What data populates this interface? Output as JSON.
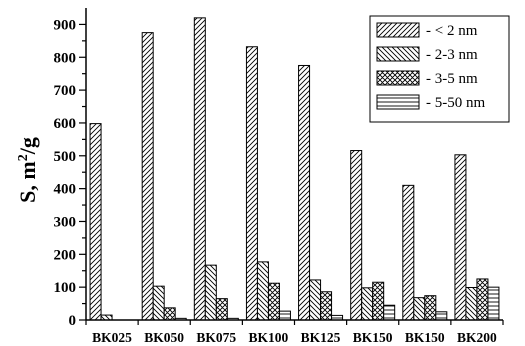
{
  "chart_data": {
    "type": "bar",
    "categories": [
      "BK025",
      "BK050",
      "BK075",
      "BK100",
      "BK125",
      "BK150",
      "BK150",
      "BK200"
    ],
    "series": [
      {
        "name": "- < 2 nm",
        "pattern": "diag-up",
        "values": [
          598,
          875,
          920,
          832,
          775,
          516,
          410,
          503
        ]
      },
      {
        "name": "- 2-3 nm",
        "pattern": "diag-down",
        "values": [
          15,
          103,
          167,
          177,
          122,
          98,
          68,
          99
        ]
      },
      {
        "name": "- 3-5 nm",
        "pattern": "crosshatch",
        "values": [
          0,
          37,
          65,
          112,
          86,
          115,
          74,
          125
        ]
      },
      {
        "name": "- 5-50 nm",
        "pattern": "horizontal",
        "values": [
          0,
          5,
          5,
          27,
          14,
          45,
          25,
          100
        ]
      }
    ],
    "ylabel_main": "S, m",
    "ylabel_sup": "2",
    "ylabel_tail": "/g",
    "xlabel": "",
    "ylim": [
      0,
      950
    ],
    "yticks": [
      "0",
      "100",
      "200",
      "300",
      "400",
      "500",
      "600",
      "700",
      "800",
      "900"
    ],
    "legend_position": "top-right",
    "grid": false
  }
}
